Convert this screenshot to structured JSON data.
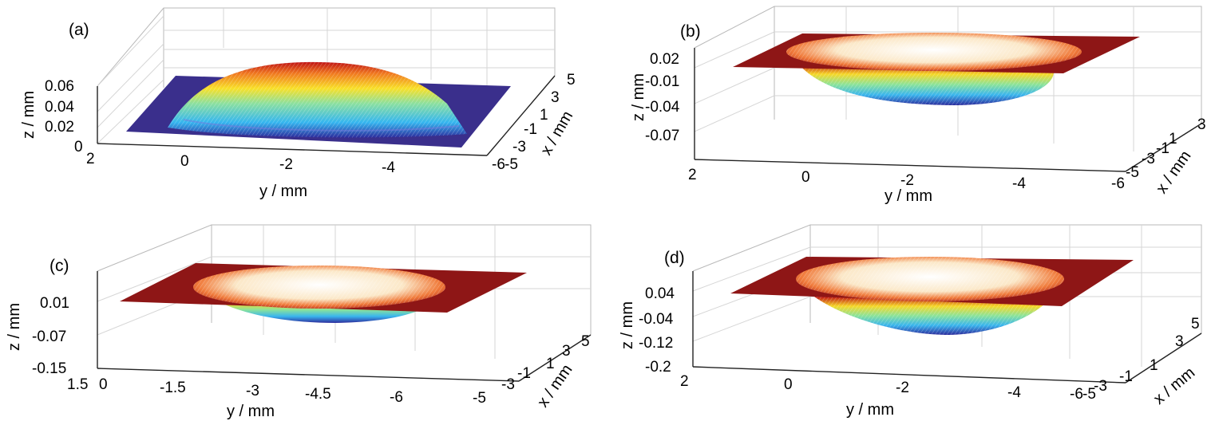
{
  "figure": {
    "colors": {
      "low": "#2a2a9a",
      "mid_low": "#35b6f0",
      "mid": "#7fe87a",
      "mid_high": "#f8e028",
      "high": "#c81414",
      "flat_red": "#8e1616",
      "flat_blue": "#3a2f8c"
    }
  },
  "chart_data": [
    {
      "panel_label": "(a)",
      "type": "surface",
      "shape": "bump",
      "xlabel": "x / mm",
      "ylabel": "y / mm",
      "zlabel": "z / mm",
      "y_ticks": [
        "2",
        "0",
        "-2",
        "-4"
      ],
      "x_ticks": [
        "-6",
        "-5",
        "-3",
        "-1",
        "1",
        "3",
        "5"
      ],
      "z_ticks": [
        "0",
        "0.02",
        "0.04",
        "0.06"
      ],
      "z_max": 0.06,
      "z_min": 0
    },
    {
      "panel_label": "(b)",
      "type": "surface",
      "shape": "dip",
      "xlabel": "x / mm",
      "ylabel": "y / mm",
      "zlabel": "z / mm",
      "y_ticks": [
        "2",
        "0",
        "-2",
        "-4"
      ],
      "x_ticks": [
        "-6",
        "-5",
        "-3",
        "-1",
        "1",
        "3"
      ],
      "z_ticks": [
        "0.02",
        "-0.01",
        "-0.04",
        "-0.07"
      ],
      "z_max": 0.02,
      "z_min": -0.04
    },
    {
      "panel_label": "(c)",
      "type": "surface",
      "shape": "dip",
      "xlabel": "x / mm",
      "ylabel": "y / mm",
      "zlabel": "z / mm",
      "y_ticks": [
        "1.5",
        "0",
        "-1.5",
        "-3",
        "-4.5",
        "-6"
      ],
      "x_ticks": [
        "-5",
        "-3",
        "-1",
        "1",
        "3",
        "5"
      ],
      "z_ticks": [
        "0.01",
        "-0.07",
        "-0.15"
      ],
      "z_max": 0.01,
      "z_min": -0.07
    },
    {
      "panel_label": "(d)",
      "type": "surface",
      "shape": "dip",
      "xlabel": "x / mm",
      "ylabel": "y / mm",
      "zlabel": "z / mm",
      "y_ticks": [
        "2",
        "0",
        "-2",
        "-4"
      ],
      "x_ticks": [
        "-6",
        "-5",
        "-3",
        "-1",
        "1",
        "3",
        "5"
      ],
      "z_ticks": [
        "0.04",
        "-0.04",
        "-0.12",
        "-0.2"
      ],
      "z_max": 0.04,
      "z_min": -0.12
    }
  ]
}
